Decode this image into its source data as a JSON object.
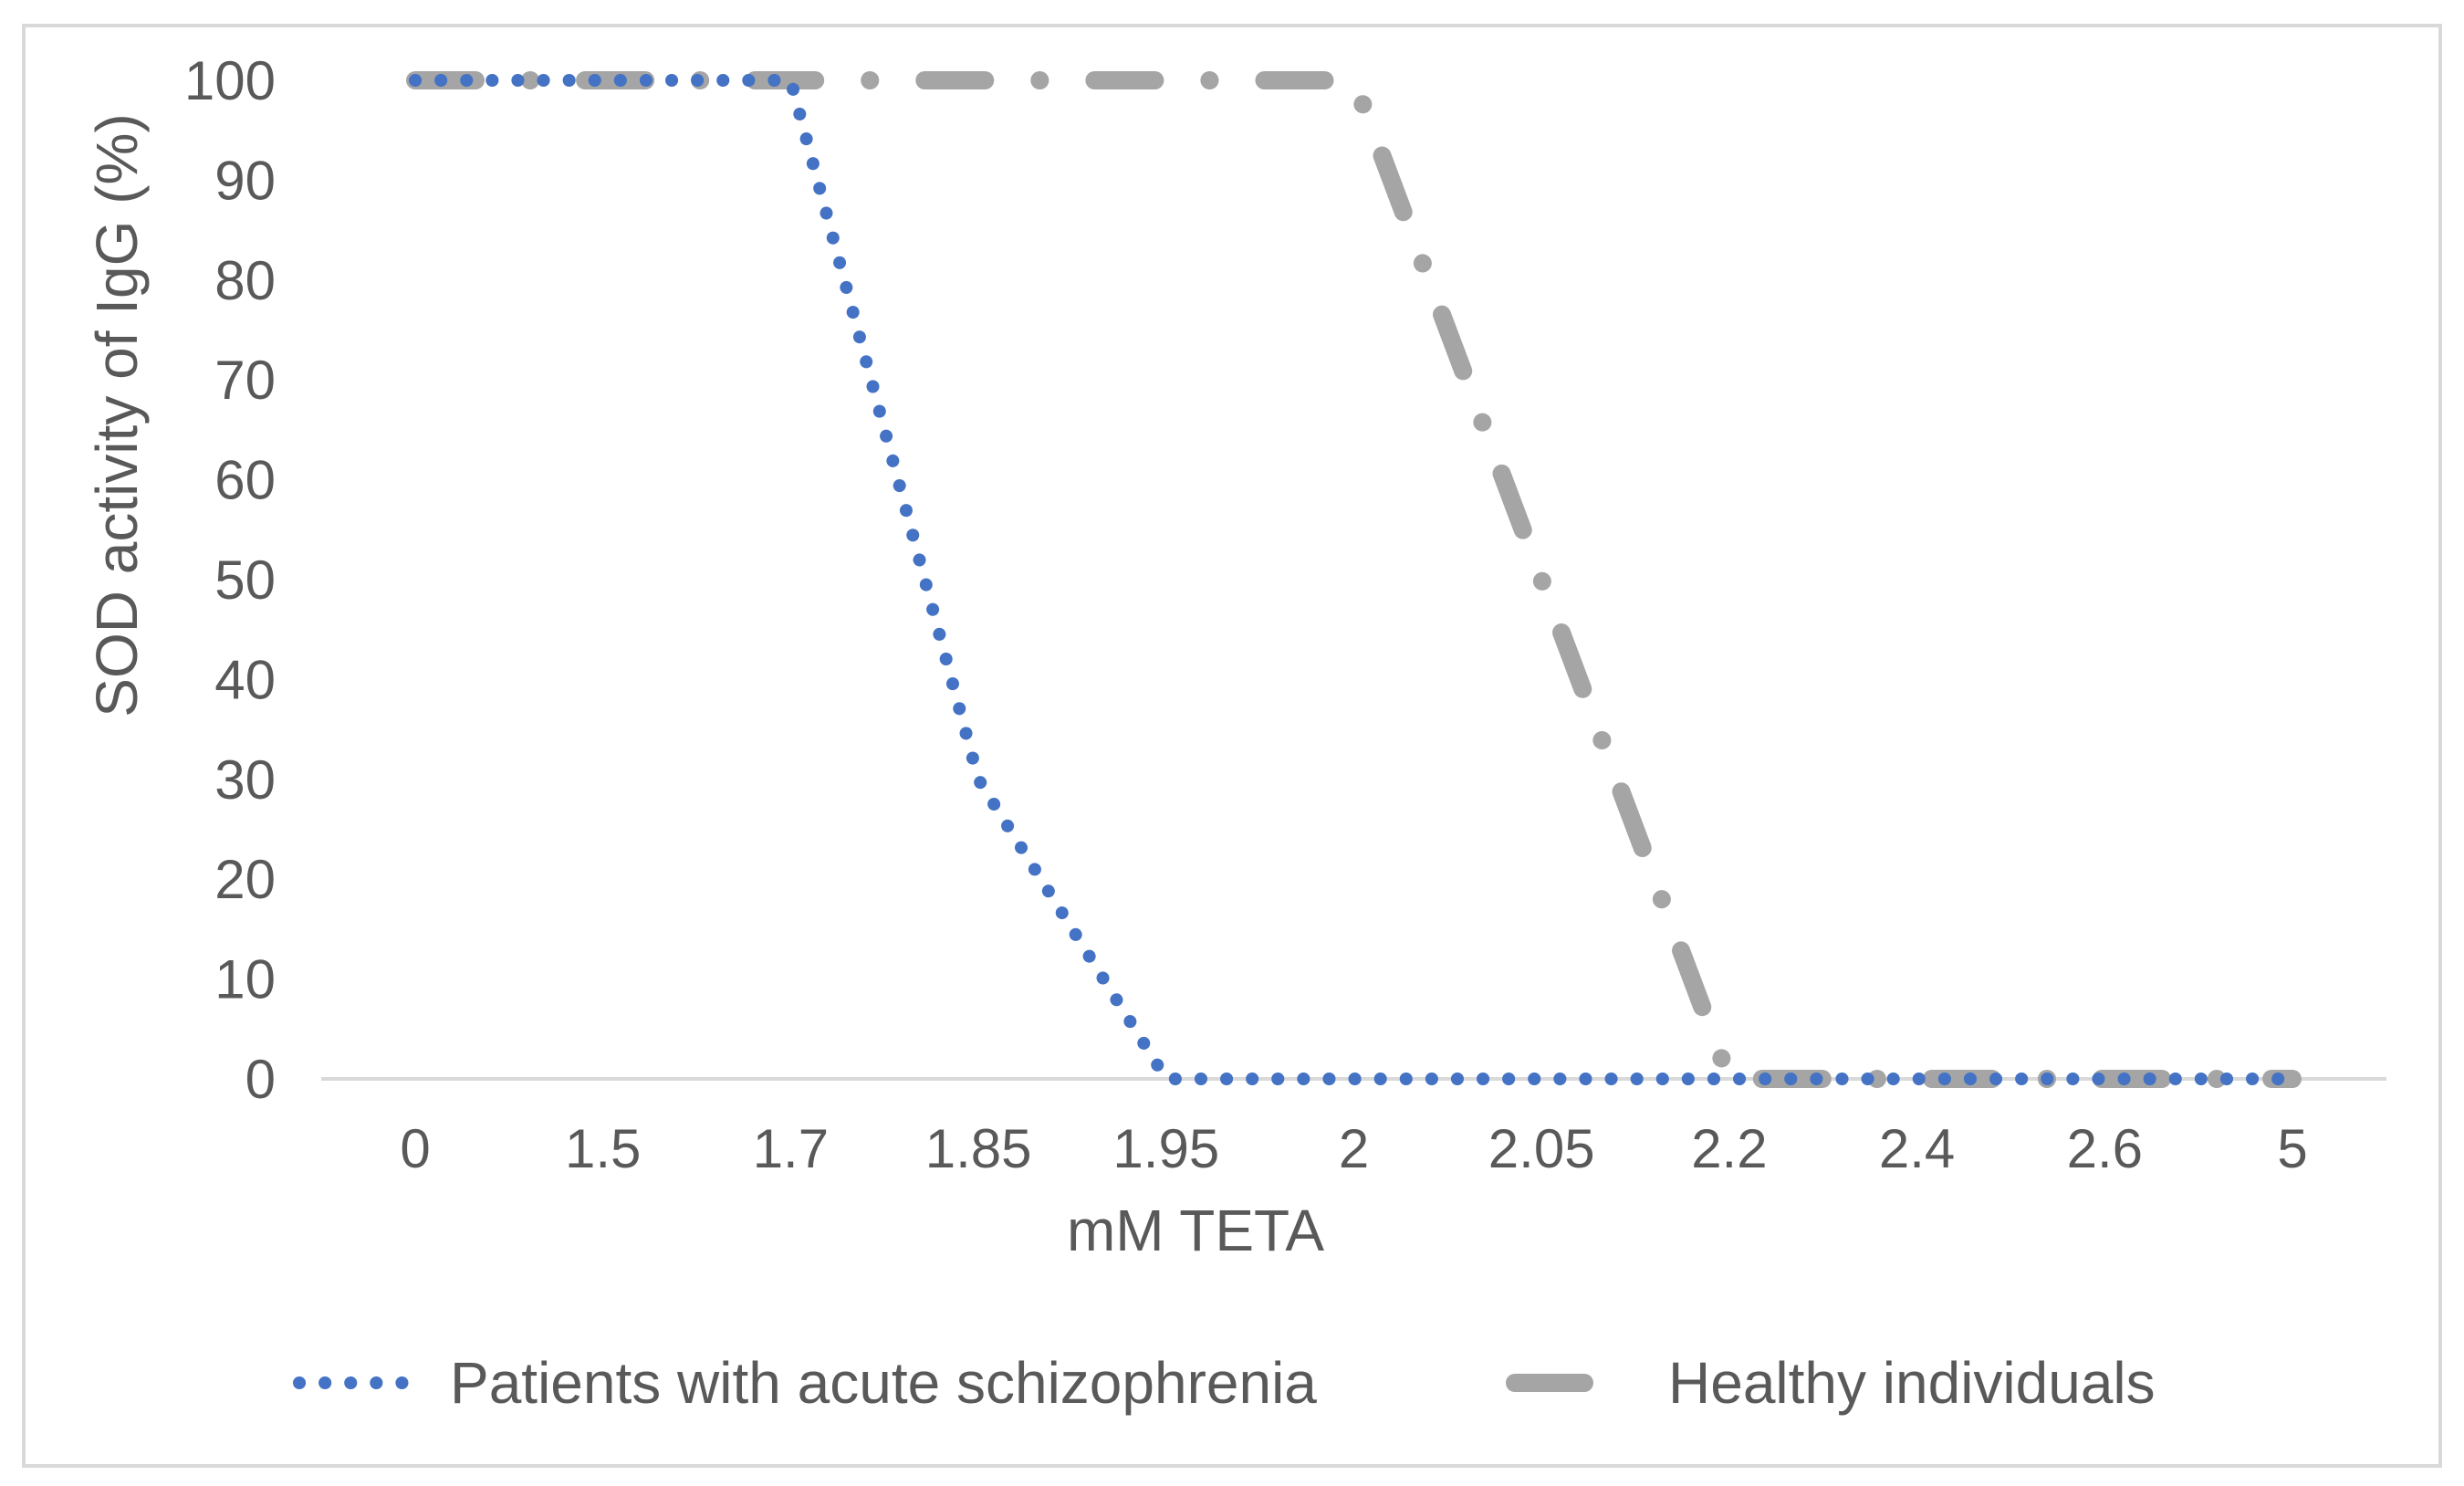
{
  "chart_data": {
    "type": "line",
    "title": "",
    "xlabel": "mM TETA",
    "ylabel": "SOD activity of IgG (%)",
    "categories": [
      "0",
      "1.5",
      "1.7",
      "1.85",
      "1.95",
      "2",
      "2.05",
      "2.2",
      "2.4",
      "2.6",
      "5"
    ],
    "ylim": [
      0,
      100
    ],
    "yticks": [
      "0",
      "10",
      "20",
      "30",
      "40",
      "50",
      "60",
      "70",
      "80",
      "90",
      "100"
    ],
    "grid": false,
    "legend_position": "bottom",
    "series": [
      {
        "name": "Patients with acute schizophrenia",
        "values": [
          100,
          100,
          100,
          30,
          0,
          0,
          0,
          0,
          0,
          0,
          0
        ],
        "color": "#4472c4",
        "style": "dotted"
      },
      {
        "name": "Healthy individuals",
        "values": [
          100,
          100,
          100,
          100,
          100,
          100,
          50,
          0,
          0,
          0,
          0
        ],
        "color": "#a5a5a5",
        "style": "long-dash-dot"
      }
    ],
    "colors": {
      "axis": "#d9d9d9",
      "text": "#595959"
    }
  }
}
